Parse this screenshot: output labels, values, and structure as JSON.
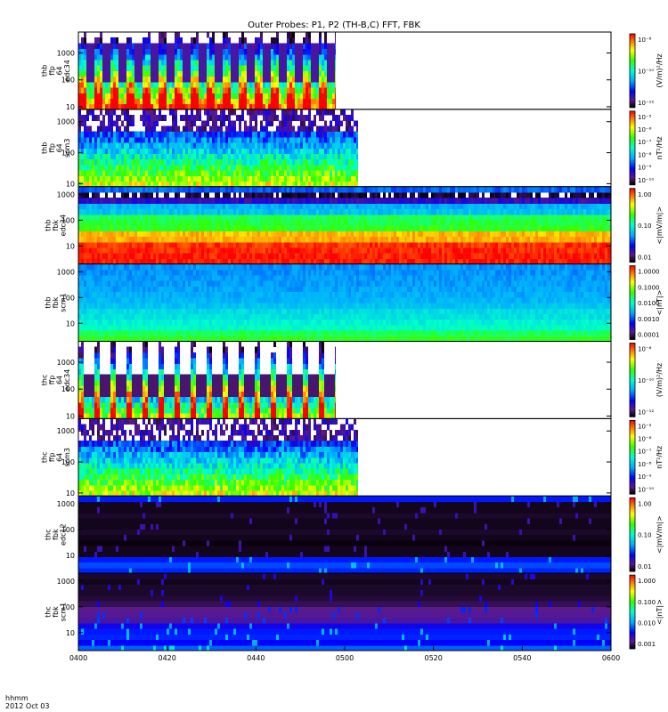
{
  "chart_data": {
    "type": "heatmap",
    "title": "Outer Probes: P1, P2 (TH-B,C) FFT, FBK",
    "x": {
      "ticks": [
        "0400",
        "0420",
        "0440",
        "0500",
        "0520",
        "0540",
        "0600"
      ],
      "range": [
        "04:00",
        "06:00"
      ],
      "label_unit": "hhmm",
      "date": "2012 Oct 03"
    },
    "panels": [
      {
        "ylabel": [
          "thb",
          "ffp",
          "64",
          "edc34"
        ],
        "yticks": [
          "10",
          "100",
          "1000"
        ],
        "ylog": true,
        "ylim": [
          8,
          6000
        ],
        "colorbar": {
          "ticks": [
            "10⁻⁸",
            "10⁻¹⁰",
            "10⁻¹²"
          ],
          "label": "(V/m)²/Hz",
          "scale": "log"
        },
        "data_end": "04:58",
        "kind": "bursty"
      },
      {
        "ylabel": [
          "thb",
          "ffp",
          "64",
          "scm3"
        ],
        "yticks": [
          "10",
          "100",
          "1000"
        ],
        "ylog": true,
        "ylim": [
          8,
          2500
        ],
        "colorbar": {
          "ticks": [
            "10⁻⁵",
            "10⁻⁶",
            "10⁻⁷",
            "10⁻⁸",
            "10⁻⁹",
            "10⁻¹⁰"
          ],
          "label": "nT²/Hz",
          "scale": "log"
        },
        "data_end": "05:03",
        "kind": "scm-fft"
      },
      {
        "ylabel": [
          "thb",
          "fbk",
          "edc34"
        ],
        "yticks": [
          "10",
          "100",
          "1000"
        ],
        "ylog": true,
        "ylim": [
          2,
          2000
        ],
        "colorbar": {
          "ticks": [
            "1.00",
            "0.10",
            "0.01"
          ],
          "label": "<|mV/m|>",
          "scale": "log"
        },
        "data_end": "06:00",
        "kind": "fbk-e"
      },
      {
        "ylabel": [
          "thb",
          "fbk",
          "scm1"
        ],
        "yticks": [
          "10",
          "100",
          "1000"
        ],
        "ylog": true,
        "ylim": [
          2,
          2000
        ],
        "colorbar": {
          "ticks": [
            "1.0000",
            "0.1000",
            "0.0100",
            "0.0010",
            "0.0001"
          ],
          "label": "<|nT|>",
          "scale": "log"
        },
        "data_end": "06:00",
        "kind": "fbk-b"
      },
      {
        "ylabel": [
          "thc",
          "ffp",
          "64",
          "edc34"
        ],
        "yticks": [
          "10",
          "100",
          "1000"
        ],
        "ylog": true,
        "ylim": [
          8,
          6000
        ],
        "colorbar": {
          "ticks": [
            "10⁻⁸",
            "10⁻¹⁰",
            "10⁻¹²"
          ],
          "label": "(V/m)²/Hz",
          "scale": "log"
        },
        "data_end": "04:58",
        "kind": "bursty-c"
      },
      {
        "ylabel": [
          "thc",
          "ffp",
          "64",
          "scm3"
        ],
        "yticks": [
          "10",
          "100",
          "1000"
        ],
        "ylog": true,
        "ylim": [
          8,
          2500
        ],
        "colorbar": {
          "ticks": [
            "10⁻⁵",
            "10⁻⁶",
            "10⁻⁷",
            "10⁻⁸",
            "10⁻⁹",
            "10⁻¹⁰"
          ],
          "label": "nT²/Hz",
          "scale": "log"
        },
        "data_end": "05:03",
        "kind": "scm-fft"
      },
      {
        "ylabel": [
          "thc",
          "fbk",
          "edc12"
        ],
        "yticks": [
          "10",
          "100",
          "1000"
        ],
        "ylog": true,
        "ylim": [
          2,
          2000
        ],
        "colorbar": {
          "ticks": [
            "1.00",
            "0.10",
            "0.01"
          ],
          "label": "<|mV/m|>",
          "scale": "log"
        },
        "data_end": "06:00",
        "kind": "fbk-e-c"
      },
      {
        "ylabel": [
          "thc",
          "fbk",
          "scm1"
        ],
        "yticks": [
          "10",
          "100",
          "1000"
        ],
        "ylog": true,
        "ylim": [
          2,
          2000
        ],
        "colorbar": {
          "ticks": [
            "1.000",
            "0.100",
            "0.010",
            "0.001"
          ],
          "label": "<|nT|>",
          "scale": "log"
        },
        "data_end": "06:00",
        "kind": "fbk-b-c"
      }
    ]
  }
}
